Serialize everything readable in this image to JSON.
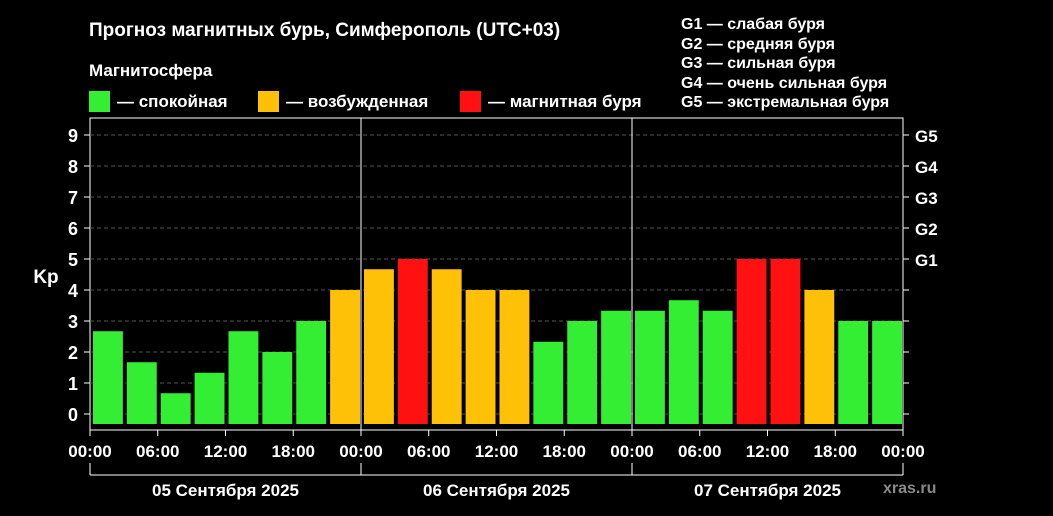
{
  "title": "Прогноз магнитных бурь, Симферополь (UTC+03)",
  "subtitle": "Магнитосфера",
  "legend": [
    {
      "label": "— спокойная",
      "color": "#33ee33"
    },
    {
      "label": "— возбужденная",
      "color": "#ffc107"
    },
    {
      "label": "— магнитная буря",
      "color": "#ff1111"
    }
  ],
  "storm_levels": [
    "G1 — слабая буря",
    "G2 — средняя буря",
    "G3 — сильная буря",
    "G4 — очень сильная буря",
    "G5 — экстремальная буря"
  ],
  "watermark": "xras.ru",
  "chart_data": {
    "type": "bar",
    "ylabel": "Kp",
    "ylim": [
      0,
      9
    ],
    "yticks": [
      "0",
      "1",
      "2",
      "3",
      "4",
      "5",
      "6",
      "7",
      "8",
      "9"
    ],
    "right_ticks": [
      {
        "label": "G1",
        "kp": 5
      },
      {
        "label": "G2",
        "kp": 6
      },
      {
        "label": "G3",
        "kp": 7
      },
      {
        "label": "G4",
        "kp": 8
      },
      {
        "label": "G5",
        "kp": 9
      }
    ],
    "xticks": [
      "00:00",
      "06:00",
      "12:00",
      "18:00",
      "00:00",
      "06:00",
      "12:00",
      "18:00",
      "00:00",
      "06:00",
      "12:00",
      "18:00",
      "00:00"
    ],
    "days": [
      "05 Сентября 2025",
      "06 Сентября 2025",
      "07 Сентября 2025"
    ],
    "colors": {
      "quiet": "#33ee33",
      "active": "#ffc107",
      "storm": "#ff1111"
    },
    "values": [
      2.67,
      1.67,
      0.67,
      1.33,
      2.67,
      2.0,
      3.0,
      4.0,
      4.67,
      5.0,
      4.67,
      4.0,
      4.0,
      2.33,
      3.0,
      3.33,
      3.33,
      3.67,
      3.33,
      5.0,
      5.0,
      4.0,
      3.0,
      3.0
    ]
  }
}
